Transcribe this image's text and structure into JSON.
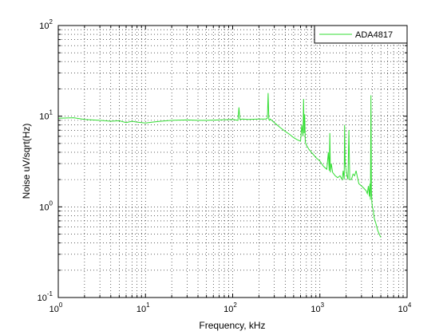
{
  "chart_data": {
    "type": "line",
    "x_scale": "log",
    "y_scale": "log",
    "xlim": [
      1,
      10000
    ],
    "ylim": [
      0.1,
      100
    ],
    "grid": true,
    "grid_minor": true,
    "legend_position": "top-right",
    "xlabel": "Frequency, kHz",
    "ylabel": "Noise uV/sqrt(Hz)",
    "x_ticks": [
      {
        "base": "10",
        "exp": "0",
        "value": 1
      },
      {
        "base": "10",
        "exp": "1",
        "value": 10
      },
      {
        "base": "10",
        "exp": "2",
        "value": 100
      },
      {
        "base": "10",
        "exp": "3",
        "value": 1000
      },
      {
        "base": "10",
        "exp": "4",
        "value": 10000
      }
    ],
    "y_ticks": [
      {
        "base": "10",
        "exp": "-1",
        "value": 0.1
      },
      {
        "base": "10",
        "exp": "0",
        "value": 1
      },
      {
        "base": "10",
        "exp": "1",
        "value": 10
      },
      {
        "base": "10",
        "exp": "2",
        "value": 100
      }
    ],
    "series": [
      {
        "name": "ADA4817",
        "color": "#33dd33",
        "x": [
          1,
          1.5,
          2,
          3,
          4,
          5,
          6,
          7,
          8,
          10,
          12,
          15,
          20,
          30,
          40,
          50,
          70,
          100,
          115,
          118,
          121,
          130,
          150,
          200,
          240,
          250,
          255,
          260,
          265,
          270,
          300,
          350,
          400,
          450,
          500,
          550,
          600,
          620,
          640,
          650,
          660,
          670,
          680,
          700,
          750,
          800,
          900,
          1000,
          1100,
          1200,
          1250,
          1280,
          1300,
          1320,
          1350,
          1400,
          1500,
          1600,
          1700,
          1800,
          1850,
          1900,
          1920,
          1950,
          2000,
          2050,
          2100,
          2150,
          2200,
          2300,
          2400,
          2500,
          2600,
          2700,
          2800,
          3000,
          3200,
          3400,
          3500,
          3600,
          3700,
          3750,
          3800,
          3850,
          3900,
          3950,
          4000,
          4100,
          4200,
          4400,
          4600,
          4800,
          5000
        ],
        "y": [
          9.5,
          9.6,
          9.2,
          9.0,
          8.8,
          8.9,
          8.5,
          8.8,
          8.6,
          8.4,
          8.6,
          8.8,
          9.0,
          9.1,
          9.0,
          9.0,
          9.1,
          9.2,
          9.0,
          12.5,
          9.2,
          9.3,
          9.2,
          9.3,
          9.3,
          9.5,
          18.0,
          9.2,
          9.0,
          9.3,
          8.5,
          7.5,
          6.8,
          6.3,
          5.8,
          5.5,
          5.3,
          8.0,
          6.0,
          15.5,
          6.5,
          10.5,
          5.2,
          4.8,
          4.3,
          4.0,
          3.5,
          3.2,
          2.8,
          2.6,
          4.0,
          2.5,
          6.5,
          2.4,
          3.0,
          2.4,
          2.2,
          2.1,
          2.2,
          2.0,
          2.5,
          2.0,
          8.0,
          3.0,
          2.5,
          2.2,
          2.0,
          7.0,
          2.0,
          2.0,
          2.3,
          2.2,
          2.5,
          2.1,
          1.8,
          1.7,
          1.6,
          1.5,
          1.4,
          1.7,
          1.3,
          1.8,
          1.2,
          17.0,
          1.5,
          1.1,
          1.0,
          0.9,
          0.75,
          0.65,
          0.55,
          0.5,
          0.46
        ]
      }
    ]
  }
}
